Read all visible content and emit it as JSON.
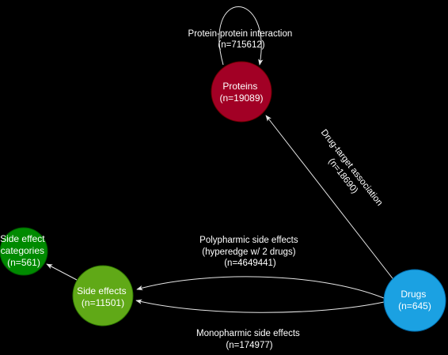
{
  "nodes": {
    "proteins": {
      "line1": "Proteins",
      "line2": "(n=19089)",
      "color": "#a20025",
      "stroke": "#6f0000"
    },
    "drugs": {
      "line1": "Drugs",
      "line2": "(n=645)",
      "color": "#1ba1e2",
      "stroke": "#006eaf"
    },
    "side_effects": {
      "line1": "Side effects",
      "line2": "(n=11501)",
      "color": "#60a917",
      "stroke": "#2d7600"
    },
    "side_effect_categories": {
      "line1": "Side effect",
      "line2": "categories",
      "line3": "(n=561)",
      "color": "#008a00",
      "stroke": "#005700"
    }
  },
  "edges": {
    "protein_protein": {
      "line1": "Protein-protein interaction",
      "line2": "(n=715612)"
    },
    "drug_target": {
      "line1": "Drug-target association",
      "line2": "(n=18690)"
    },
    "polypharmic": {
      "line1": "Polypharmic side effects",
      "line2": "(hyperedge w/ 2 drugs)",
      "line3": "(n=4649441)"
    },
    "monopharmic": {
      "line1": "Monopharmic side effects",
      "line2": "(n=174977)"
    }
  }
}
